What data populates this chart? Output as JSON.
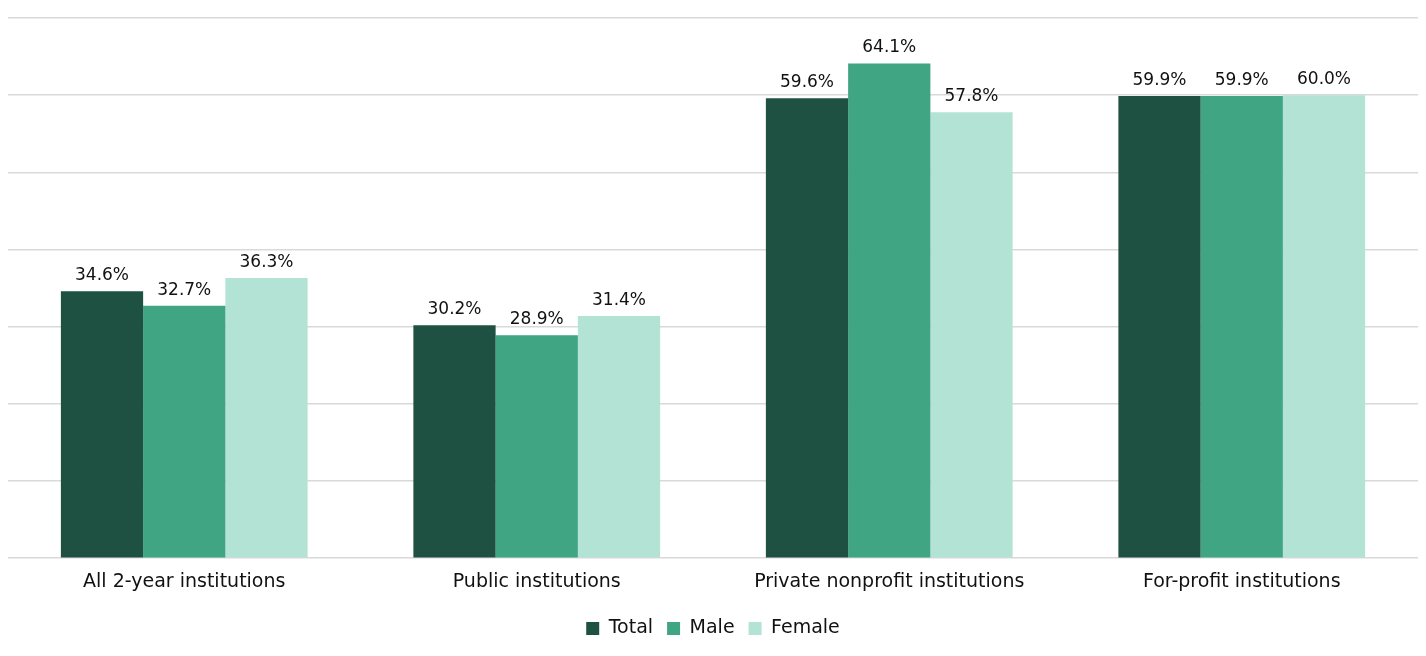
{
  "chart_data": {
    "type": "bar",
    "categories": [
      "All 2-year institutions",
      "Public institutions",
      "Private nonprofit institutions",
      "For-profit institutions"
    ],
    "series": [
      {
        "name": "Total",
        "color": "#1f5143",
        "values": [
          34.6,
          30.2,
          59.6,
          59.9
        ],
        "value_labels": [
          "34.6%",
          "30.2%",
          "59.6%",
          "59.9%"
        ]
      },
      {
        "name": "Male",
        "color": "#3fa582",
        "values": [
          32.7,
          28.9,
          64.1,
          59.9
        ],
        "value_labels": [
          "32.7%",
          "28.9%",
          "64.1%",
          "59.9%"
        ]
      },
      {
        "name": "Female",
        "color": "#b3e3d4",
        "values": [
          36.3,
          31.4,
          57.8,
          60.0
        ],
        "value_labels": [
          "36.3%",
          "31.4%",
          "57.8%",
          "60.0%"
        ]
      }
    ],
    "ylim": [
      0,
      70
    ],
    "yticks": [
      {
        "value": 0,
        "label": null
      },
      {
        "value": 10,
        "label": null
      },
      {
        "value": 20,
        "label": null
      },
      {
        "value": 30,
        "label": null
      },
      {
        "value": 40,
        "label": null
      },
      {
        "value": 50,
        "label": null
      },
      {
        "value": 60,
        "label": null
      },
      {
        "value": 70,
        "label": null
      }
    ],
    "tick_labels": "x",
    "grid": "y",
    "legend": "bottom"
  }
}
